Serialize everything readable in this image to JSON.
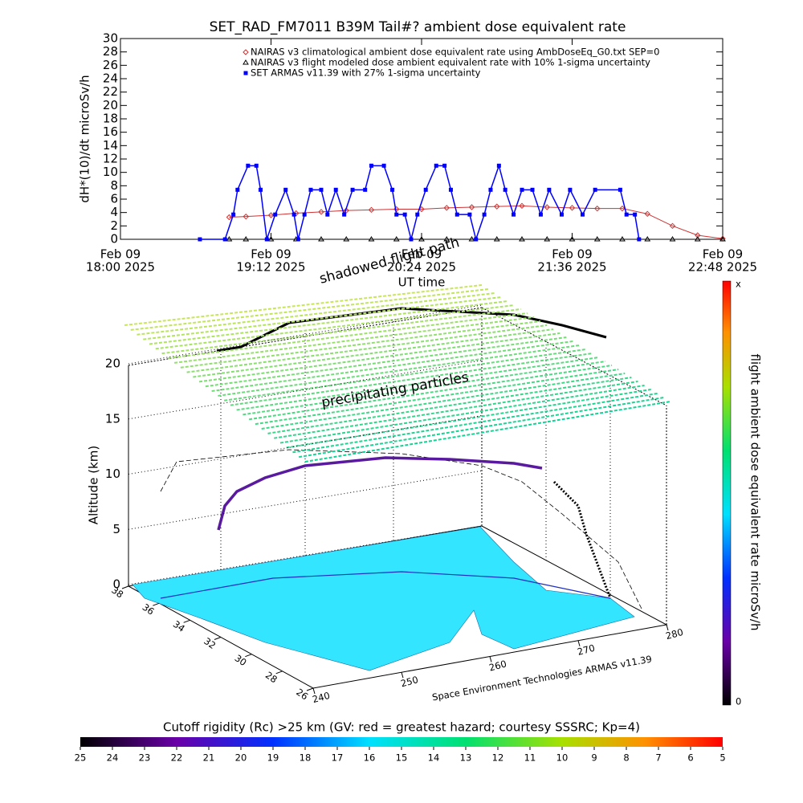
{
  "chart_data": [
    {
      "type": "line",
      "title": "SET_RAD_FM7011  B39M Tail#? ambient dose equivalent rate",
      "y_label": "dH*(10)/dt microSv/h",
      "x_label": "UT time",
      "xlim": [
        "2025-02-09T18:00",
        "2025-02-09T22:48"
      ],
      "xticks": [
        {
          "value": "2025-02-09T18:00",
          "label": [
            "Feb 09",
            "18:00 2025"
          ]
        },
        {
          "value": "2025-02-09T19:12",
          "label": [
            "Feb 09",
            "19:12 2025"
          ]
        },
        {
          "value": "2025-02-09T20:24",
          "label": [
            "Feb 09",
            "20:24 2025"
          ]
        },
        {
          "value": "2025-02-09T21:36",
          "label": [
            "Feb 09",
            "21:36 2025"
          ]
        },
        {
          "value": "2025-02-09T22:48",
          "label": [
            "Feb 09",
            "22:48 2025"
          ]
        }
      ],
      "ylim": [
        0,
        30
      ],
      "yticks": [
        0,
        2,
        4,
        6,
        8,
        10,
        12,
        14,
        16,
        18,
        20,
        22,
        24,
        26,
        28,
        30
      ],
      "series": [
        {
          "name": "NAIRAS v3 climatological ambient dose equivalent rate using AmbDoseEq_G0.txt SEP=0",
          "color": "#cc3333",
          "marker": "diamond",
          "x": [
            "2025-02-09T18:52",
            "2025-02-09T19:00",
            "2025-02-09T19:12",
            "2025-02-09T19:24",
            "2025-02-09T19:36",
            "2025-02-09T19:48",
            "2025-02-09T20:00",
            "2025-02-09T20:12",
            "2025-02-09T20:24",
            "2025-02-09T20:36",
            "2025-02-09T20:48",
            "2025-02-09T21:00",
            "2025-02-09T21:12",
            "2025-02-09T21:24",
            "2025-02-09T21:36",
            "2025-02-09T21:48",
            "2025-02-09T22:00",
            "2025-02-09T22:12",
            "2025-02-09T22:24",
            "2025-02-09T22:36",
            "2025-02-09T22:48"
          ],
          "values": [
            3.3,
            3.4,
            3.6,
            3.9,
            4.1,
            4.3,
            4.4,
            4.5,
            4.5,
            4.7,
            4.8,
            4.9,
            5.0,
            4.8,
            4.7,
            4.6,
            4.6,
            3.8,
            2.0,
            0.6,
            0.1
          ]
        },
        {
          "name": "NAIRAS v3 flight modeled dose ambient equivalent rate with 10% 1-sigma uncertainty",
          "color": "#000000",
          "marker": "triangle",
          "x": [
            "2025-02-09T18:52",
            "2025-02-09T19:00",
            "2025-02-09T19:12",
            "2025-02-09T19:24",
            "2025-02-09T19:36",
            "2025-02-09T19:48",
            "2025-02-09T20:00",
            "2025-02-09T20:12",
            "2025-02-09T20:24",
            "2025-02-09T20:36",
            "2025-02-09T20:48",
            "2025-02-09T21:00",
            "2025-02-09T21:12",
            "2025-02-09T21:24",
            "2025-02-09T21:36",
            "2025-02-09T21:48",
            "2025-02-09T22:00",
            "2025-02-09T22:12",
            "2025-02-09T22:24",
            "2025-02-09T22:36",
            "2025-02-09T22:48"
          ],
          "values": [
            0,
            0,
            0,
            0,
            0,
            0,
            0,
            0,
            0,
            0,
            0,
            0,
            0,
            0,
            0,
            0,
            0,
            0,
            0,
            0,
            0
          ]
        },
        {
          "name": "SET ARMAS v11.39 with 27% 1-sigma uncertainty",
          "color": "#0000ff",
          "marker": "square",
          "x": [
            "2025-02-09T18:38",
            "2025-02-09T18:50",
            "2025-02-09T18:54",
            "2025-02-09T18:56",
            "2025-02-09T19:01",
            "2025-02-09T19:05",
            "2025-02-09T19:07",
            "2025-02-09T19:10",
            "2025-02-09T19:14",
            "2025-02-09T19:19",
            "2025-02-09T19:23",
            "2025-02-09T19:25",
            "2025-02-09T19:28",
            "2025-02-09T19:31",
            "2025-02-09T19:36",
            "2025-02-09T19:39",
            "2025-02-09T19:43",
            "2025-02-09T19:47",
            "2025-02-09T19:51",
            "2025-02-09T19:57",
            "2025-02-09T20:00",
            "2025-02-09T20:06",
            "2025-02-09T20:10",
            "2025-02-09T20:12",
            "2025-02-09T20:16",
            "2025-02-09T20:19",
            "2025-02-09T20:22",
            "2025-02-09T20:26",
            "2025-02-09T20:31",
            "2025-02-09T20:35",
            "2025-02-09T20:38",
            "2025-02-09T20:41",
            "2025-02-09T20:47",
            "2025-02-09T20:50",
            "2025-02-09T20:54",
            "2025-02-09T20:57",
            "2025-02-09T21:01",
            "2025-02-09T21:04",
            "2025-02-09T21:08",
            "2025-02-09T21:12",
            "2025-02-09T21:17",
            "2025-02-09T21:21",
            "2025-02-09T21:25",
            "2025-02-09T21:31",
            "2025-02-09T21:35",
            "2025-02-09T21:41",
            "2025-02-09T21:47",
            "2025-02-09T21:59",
            "2025-02-09T22:02",
            "2025-02-09T22:06",
            "2025-02-09T22:08"
          ],
          "values": [
            0,
            0,
            3.7,
            7.4,
            11,
            11,
            7.4,
            0,
            3.7,
            7.4,
            3.7,
            0,
            3.7,
            7.4,
            7.4,
            3.7,
            7.4,
            3.7,
            7.4,
            7.4,
            11,
            11,
            7.4,
            3.7,
            3.7,
            0,
            3.7,
            7.4,
            11,
            11,
            7.4,
            3.7,
            3.7,
            0,
            3.7,
            7.4,
            11,
            7.4,
            3.7,
            7.4,
            7.4,
            3.7,
            7.4,
            3.7,
            7.4,
            3.7,
            7.4,
            7.4,
            3.7,
            3.7,
            0
          ]
        }
      ]
    },
    {
      "type": "surface3d",
      "z_label": "Altitude (km)",
      "zlim": [
        0,
        20
      ],
      "zticks": [
        0,
        5,
        10,
        15,
        20
      ],
      "lat_ticks": [
        38,
        36,
        34,
        32,
        30,
        28,
        26
      ],
      "lon_ticks": [
        240,
        250,
        260,
        270,
        280
      ],
      "annotations": [
        "shadowed flight path",
        "precipitating particles",
        "Space Environment Technologies ARMAS v11.39"
      ],
      "dose_colorbar": {
        "label": "flight ambient dose equivalent rate microSv/h",
        "labels": [
          "x",
          "0"
        ]
      },
      "rigidity_colorbar": {
        "title": "Cutoff rigidity (Rc) >25 km (GV: red = greatest hazard; courtesy SSSRC; Kp=4)",
        "ticks": [
          25,
          24,
          23,
          22,
          21,
          20,
          19,
          18,
          17,
          16,
          15,
          14,
          13,
          12,
          11,
          10,
          9,
          8,
          7,
          6,
          5
        ]
      }
    }
  ]
}
